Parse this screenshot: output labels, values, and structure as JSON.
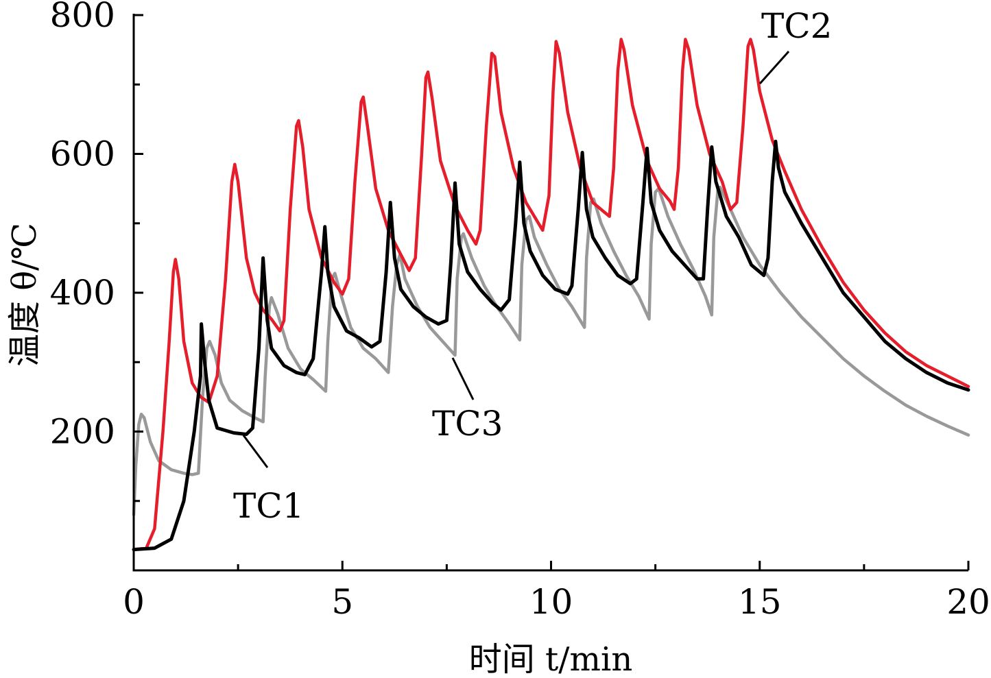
{
  "chart_data": {
    "type": "line",
    "xlabel": "时间 t/min",
    "ylabel": "温度 θ/℃",
    "xlim": [
      0,
      20
    ],
    "ylim": [
      0,
      800
    ],
    "x_ticks": [
      0,
      5,
      10,
      15,
      20
    ],
    "x_tick_labels": [
      "0",
      "5",
      "10",
      "15",
      "20"
    ],
    "x_minor_ticks": [
      2.5,
      7.5,
      12.5,
      17.5
    ],
    "y_ticks": [
      200,
      400,
      600,
      800
    ],
    "y_tick_labels": [
      "200",
      "400",
      "600",
      "800"
    ],
    "y_minor_ticks": [
      100,
      300,
      500,
      700
    ],
    "grid": false,
    "legend": "none",
    "series": [
      {
        "name": "TC1",
        "color": "#000000",
        "points": [
          [
            0,
            30
          ],
          [
            0.5,
            32
          ],
          [
            0.9,
            45
          ],
          [
            1.2,
            100
          ],
          [
            1.45,
            200
          ],
          [
            1.6,
            280
          ],
          [
            1.62,
            355
          ],
          [
            1.7,
            300
          ],
          [
            1.8,
            245
          ],
          [
            2.0,
            205
          ],
          [
            2.4,
            198
          ],
          [
            2.7,
            196
          ],
          [
            2.85,
            205
          ],
          [
            3.0,
            320
          ],
          [
            3.1,
            450
          ],
          [
            3.2,
            360
          ],
          [
            3.3,
            320
          ],
          [
            3.6,
            295
          ],
          [
            3.9,
            285
          ],
          [
            4.1,
            282
          ],
          [
            4.3,
            305
          ],
          [
            4.5,
            430
          ],
          [
            4.58,
            495
          ],
          [
            4.65,
            430
          ],
          [
            4.8,
            380
          ],
          [
            5.1,
            345
          ],
          [
            5.4,
            335
          ],
          [
            5.7,
            322
          ],
          [
            5.9,
            330
          ],
          [
            6.05,
            430
          ],
          [
            6.15,
            530
          ],
          [
            6.25,
            450
          ],
          [
            6.4,
            405
          ],
          [
            6.7,
            380
          ],
          [
            7.0,
            365
          ],
          [
            7.3,
            355
          ],
          [
            7.5,
            360
          ],
          [
            7.6,
            445
          ],
          [
            7.7,
            558
          ],
          [
            7.8,
            470
          ],
          [
            8.0,
            430
          ],
          [
            8.3,
            405
          ],
          [
            8.6,
            385
          ],
          [
            8.8,
            375
          ],
          [
            9.0,
            390
          ],
          [
            9.15,
            500
          ],
          [
            9.25,
            588
          ],
          [
            9.35,
            500
          ],
          [
            9.5,
            460
          ],
          [
            9.8,
            425
          ],
          [
            10.1,
            405
          ],
          [
            10.4,
            398
          ],
          [
            10.5,
            410
          ],
          [
            10.65,
            520
          ],
          [
            10.75,
            602
          ],
          [
            10.85,
            520
          ],
          [
            11.0,
            480
          ],
          [
            11.3,
            450
          ],
          [
            11.6,
            425
          ],
          [
            11.9,
            413
          ],
          [
            12.05,
            420
          ],
          [
            12.2,
            530
          ],
          [
            12.3,
            608
          ],
          [
            12.4,
            530
          ],
          [
            12.6,
            490
          ],
          [
            12.9,
            460
          ],
          [
            13.2,
            440
          ],
          [
            13.5,
            420
          ],
          [
            13.65,
            420
          ],
          [
            13.75,
            520
          ],
          [
            13.85,
            610
          ],
          [
            13.95,
            560
          ],
          [
            14.2,
            510
          ],
          [
            14.5,
            480
          ],
          [
            14.8,
            440
          ],
          [
            15.1,
            425
          ],
          [
            15.2,
            450
          ],
          [
            15.3,
            560
          ],
          [
            15.38,
            618
          ],
          [
            15.45,
            580
          ],
          [
            15.6,
            545
          ],
          [
            16.0,
            500
          ],
          [
            16.5,
            450
          ],
          [
            17.0,
            400
          ],
          [
            17.5,
            365
          ],
          [
            18.0,
            330
          ],
          [
            18.5,
            305
          ],
          [
            19.0,
            285
          ],
          [
            19.5,
            270
          ],
          [
            20.0,
            260
          ]
        ]
      },
      {
        "name": "TC2",
        "color": "#e41e2b",
        "points": [
          [
            0,
            30
          ],
          [
            0.3,
            32
          ],
          [
            0.5,
            60
          ],
          [
            0.7,
            200
          ],
          [
            0.85,
            330
          ],
          [
            0.95,
            430
          ],
          [
            1.0,
            448
          ],
          [
            1.08,
            420
          ],
          [
            1.2,
            330
          ],
          [
            1.4,
            270
          ],
          [
            1.6,
            250
          ],
          [
            1.8,
            242
          ],
          [
            2.0,
            280
          ],
          [
            2.2,
            420
          ],
          [
            2.35,
            560
          ],
          [
            2.42,
            585
          ],
          [
            2.5,
            560
          ],
          [
            2.7,
            450
          ],
          [
            2.9,
            400
          ],
          [
            3.1,
            375
          ],
          [
            3.3,
            362
          ],
          [
            3.5,
            345
          ],
          [
            3.6,
            360
          ],
          [
            3.75,
            520
          ],
          [
            3.9,
            640
          ],
          [
            3.95,
            648
          ],
          [
            4.05,
            610
          ],
          [
            4.2,
            520
          ],
          [
            4.5,
            450
          ],
          [
            4.8,
            415
          ],
          [
            5.0,
            398
          ],
          [
            5.15,
            420
          ],
          [
            5.3,
            560
          ],
          [
            5.45,
            675
          ],
          [
            5.5,
            682
          ],
          [
            5.6,
            640
          ],
          [
            5.8,
            550
          ],
          [
            6.1,
            490
          ],
          [
            6.4,
            455
          ],
          [
            6.6,
            432
          ],
          [
            6.75,
            450
          ],
          [
            6.9,
            600
          ],
          [
            7.0,
            710
          ],
          [
            7.05,
            718
          ],
          [
            7.15,
            680
          ],
          [
            7.35,
            590
          ],
          [
            7.7,
            525
          ],
          [
            8.0,
            490
          ],
          [
            8.2,
            470
          ],
          [
            8.3,
            490
          ],
          [
            8.45,
            640
          ],
          [
            8.58,
            745
          ],
          [
            8.65,
            740
          ],
          [
            8.8,
            660
          ],
          [
            9.1,
            580
          ],
          [
            9.4,
            530
          ],
          [
            9.7,
            500
          ],
          [
            9.8,
            490
          ],
          [
            9.95,
            540
          ],
          [
            10.05,
            690
          ],
          [
            10.12,
            762
          ],
          [
            10.2,
            745
          ],
          [
            10.4,
            660
          ],
          [
            10.7,
            580
          ],
          [
            11.0,
            530
          ],
          [
            11.3,
            515
          ],
          [
            11.4,
            510
          ],
          [
            11.5,
            580
          ],
          [
            11.6,
            720
          ],
          [
            11.68,
            765
          ],
          [
            11.75,
            750
          ],
          [
            11.95,
            670
          ],
          [
            12.3,
            590
          ],
          [
            12.6,
            550
          ],
          [
            12.85,
            532
          ],
          [
            12.95,
            520
          ],
          [
            13.05,
            580
          ],
          [
            13.15,
            720
          ],
          [
            13.22,
            765
          ],
          [
            13.3,
            750
          ],
          [
            13.5,
            670
          ],
          [
            13.8,
            600
          ],
          [
            14.1,
            560
          ],
          [
            14.3,
            520
          ],
          [
            14.45,
            530
          ],
          [
            14.6,
            640
          ],
          [
            14.72,
            755
          ],
          [
            14.78,
            765
          ],
          [
            14.85,
            750
          ],
          [
            15.0,
            690
          ],
          [
            15.3,
            620
          ],
          [
            15.6,
            575
          ],
          [
            16.0,
            520
          ],
          [
            16.5,
            465
          ],
          [
            17.0,
            415
          ],
          [
            17.5,
            375
          ],
          [
            18.0,
            342
          ],
          [
            18.5,
            315
          ],
          [
            19.0,
            295
          ],
          [
            19.5,
            280
          ],
          [
            20.0,
            265
          ]
        ]
      },
      {
        "name": "TC3",
        "color": "#999999",
        "points": [
          [
            0,
            80
          ],
          [
            0.05,
            150
          ],
          [
            0.12,
            210
          ],
          [
            0.18,
            225
          ],
          [
            0.25,
            220
          ],
          [
            0.4,
            185
          ],
          [
            0.6,
            158
          ],
          [
            0.9,
            145
          ],
          [
            1.2,
            140
          ],
          [
            1.4,
            138
          ],
          [
            1.55,
            140
          ],
          [
            1.65,
            250
          ],
          [
            1.75,
            320
          ],
          [
            1.82,
            330
          ],
          [
            1.95,
            310
          ],
          [
            2.1,
            270
          ],
          [
            2.3,
            245
          ],
          [
            2.6,
            230
          ],
          [
            2.9,
            220
          ],
          [
            3.1,
            214
          ],
          [
            3.15,
            280
          ],
          [
            3.25,
            380
          ],
          [
            3.3,
            393
          ],
          [
            3.45,
            370
          ],
          [
            3.7,
            320
          ],
          [
            4.0,
            290
          ],
          [
            4.3,
            275
          ],
          [
            4.6,
            258
          ],
          [
            4.65,
            330
          ],
          [
            4.75,
            420
          ],
          [
            4.82,
            428
          ],
          [
            4.95,
            400
          ],
          [
            5.2,
            350
          ],
          [
            5.5,
            320
          ],
          [
            5.8,
            305
          ],
          [
            6.1,
            285
          ],
          [
            6.2,
            380
          ],
          [
            6.3,
            440
          ],
          [
            6.38,
            455
          ],
          [
            6.5,
            420
          ],
          [
            6.8,
            380
          ],
          [
            7.1,
            350
          ],
          [
            7.4,
            330
          ],
          [
            7.7,
            310
          ],
          [
            7.75,
            420
          ],
          [
            7.85,
            480
          ],
          [
            7.9,
            485
          ],
          [
            8.1,
            450
          ],
          [
            8.4,
            410
          ],
          [
            8.7,
            380
          ],
          [
            9.0,
            355
          ],
          [
            9.25,
            332
          ],
          [
            9.3,
            440
          ],
          [
            9.4,
            505
          ],
          [
            9.48,
            510
          ],
          [
            9.6,
            480
          ],
          [
            9.9,
            440
          ],
          [
            10.2,
            405
          ],
          [
            10.5,
            380
          ],
          [
            10.8,
            350
          ],
          [
            10.85,
            450
          ],
          [
            10.95,
            530
          ],
          [
            11.02,
            535
          ],
          [
            11.2,
            500
          ],
          [
            11.5,
            460
          ],
          [
            11.8,
            425
          ],
          [
            12.1,
            395
          ],
          [
            12.35,
            362
          ],
          [
            12.4,
            470
          ],
          [
            12.5,
            545
          ],
          [
            12.58,
            550
          ],
          [
            12.8,
            510
          ],
          [
            13.1,
            470
          ],
          [
            13.4,
            435
          ],
          [
            13.7,
            395
          ],
          [
            13.85,
            368
          ],
          [
            13.9,
            480
          ],
          [
            14.0,
            550
          ],
          [
            14.05,
            552
          ],
          [
            14.3,
            520
          ],
          [
            14.6,
            480
          ],
          [
            15.0,
            440
          ],
          [
            15.5,
            400
          ],
          [
            16.0,
            365
          ],
          [
            16.5,
            335
          ],
          [
            17.0,
            305
          ],
          [
            17.5,
            280
          ],
          [
            18.0,
            258
          ],
          [
            18.5,
            238
          ],
          [
            19.0,
            222
          ],
          [
            19.5,
            208
          ],
          [
            20.0,
            195
          ]
        ]
      }
    ],
    "annotations": [
      {
        "text": "TC1",
        "target_series": "TC1"
      },
      {
        "text": "TC2",
        "target_series": "TC2"
      },
      {
        "text": "TC3",
        "target_series": "TC3"
      }
    ]
  }
}
